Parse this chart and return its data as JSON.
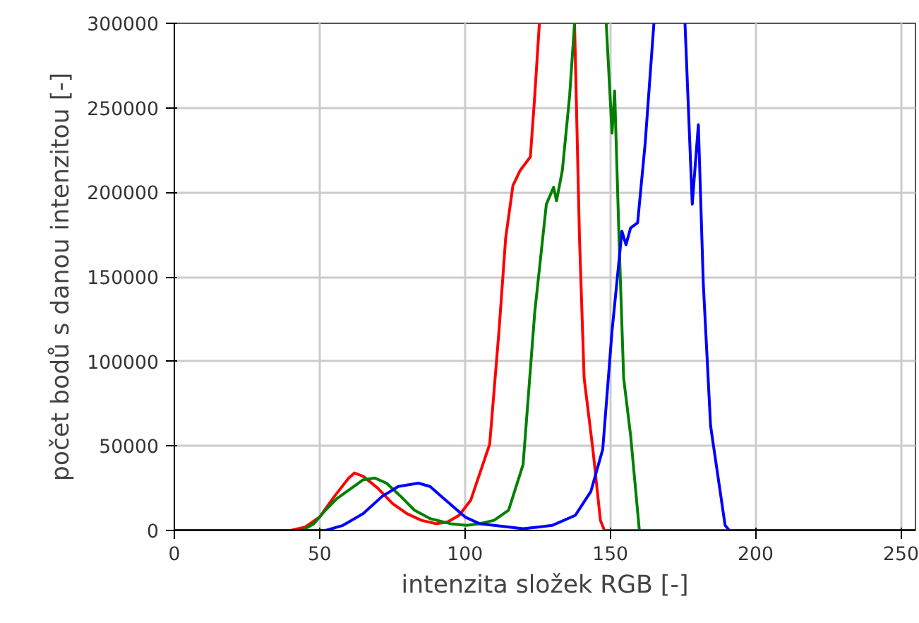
{
  "chart_data": {
    "type": "line",
    "xlabel": "intenzita složek RGB [-]",
    "ylabel": "počet bodů s danou intenzitou [-]",
    "xlim": [
      0,
      255
    ],
    "ylim": [
      0,
      300000
    ],
    "xticks": [
      0,
      50,
      100,
      150,
      200,
      250
    ],
    "yticks": [
      0,
      50000,
      100000,
      150000,
      200000,
      250000,
      300000
    ],
    "grid": true,
    "marker": "none",
    "line_style": "solid",
    "series": [
      {
        "color": "#ff0000",
        "x": [
          0,
          40,
          45,
          50,
          55,
          60,
          62,
          65,
          70,
          75,
          80,
          85,
          90,
          94,
          98,
          102,
          108.5,
          111.7,
          114,
          116.5,
          119,
          122.5,
          124,
          125.6,
          130,
          137.7,
          139.4,
          141,
          144,
          146.6,
          148,
          200,
          255
        ],
        "values": [
          0,
          0,
          2000,
          8000,
          20000,
          31000,
          34000,
          32000,
          25000,
          16000,
          10000,
          6000,
          4000,
          5000,
          9000,
          18000,
          51000,
          118000,
          173000,
          204000,
          213000,
          221000,
          257000,
          300000,
          null,
          300000,
          173000,
          90000,
          48000,
          6000,
          0,
          0,
          0
        ]
      },
      {
        "color": "#008000",
        "x": [
          0,
          44,
          48,
          52,
          56,
          61.7,
          65,
          69,
          73,
          78,
          82.6,
          88,
          95,
          100.5,
          105,
          110,
          115,
          120,
          124,
          128,
          130.5,
          131.5,
          133.5,
          136,
          137.7,
          143,
          148.6,
          150.6,
          151.5,
          153,
          154.6,
          157,
          160,
          200,
          255
        ],
        "values": [
          0,
          0,
          4000,
          12000,
          19000,
          26000,
          30000,
          31000,
          28000,
          20000,
          12000,
          7000,
          4000,
          3000,
          4000,
          6000,
          12000,
          39000,
          129000,
          193000,
          203000,
          195000,
          213000,
          257000,
          300000,
          null,
          300000,
          235000,
          260000,
          173000,
          90000,
          56000,
          0,
          0,
          0
        ]
      },
      {
        "color": "#0000ff",
        "x": [
          0,
          52,
          58,
          65,
          71.4,
          77,
          84,
          88,
          92,
          96,
          100,
          105,
          110,
          120,
          130,
          138,
          143.3,
          147.4,
          150.6,
          154,
          155.4,
          157,
          159.4,
          162,
          165,
          170,
          175.7,
          178.2,
          180.3,
          182,
          184.5,
          189.5,
          191,
          255
        ],
        "values": [
          0,
          0,
          3000,
          10000,
          20000,
          26000,
          28000,
          26000,
          20000,
          14000,
          8000,
          4000,
          3000,
          1000,
          3000,
          9000,
          23000,
          48000,
          118000,
          177000,
          169000,
          179000,
          182000,
          229000,
          300000,
          null,
          300000,
          193000,
          240000,
          146000,
          62000,
          3000,
          0,
          0
        ]
      }
    ]
  }
}
